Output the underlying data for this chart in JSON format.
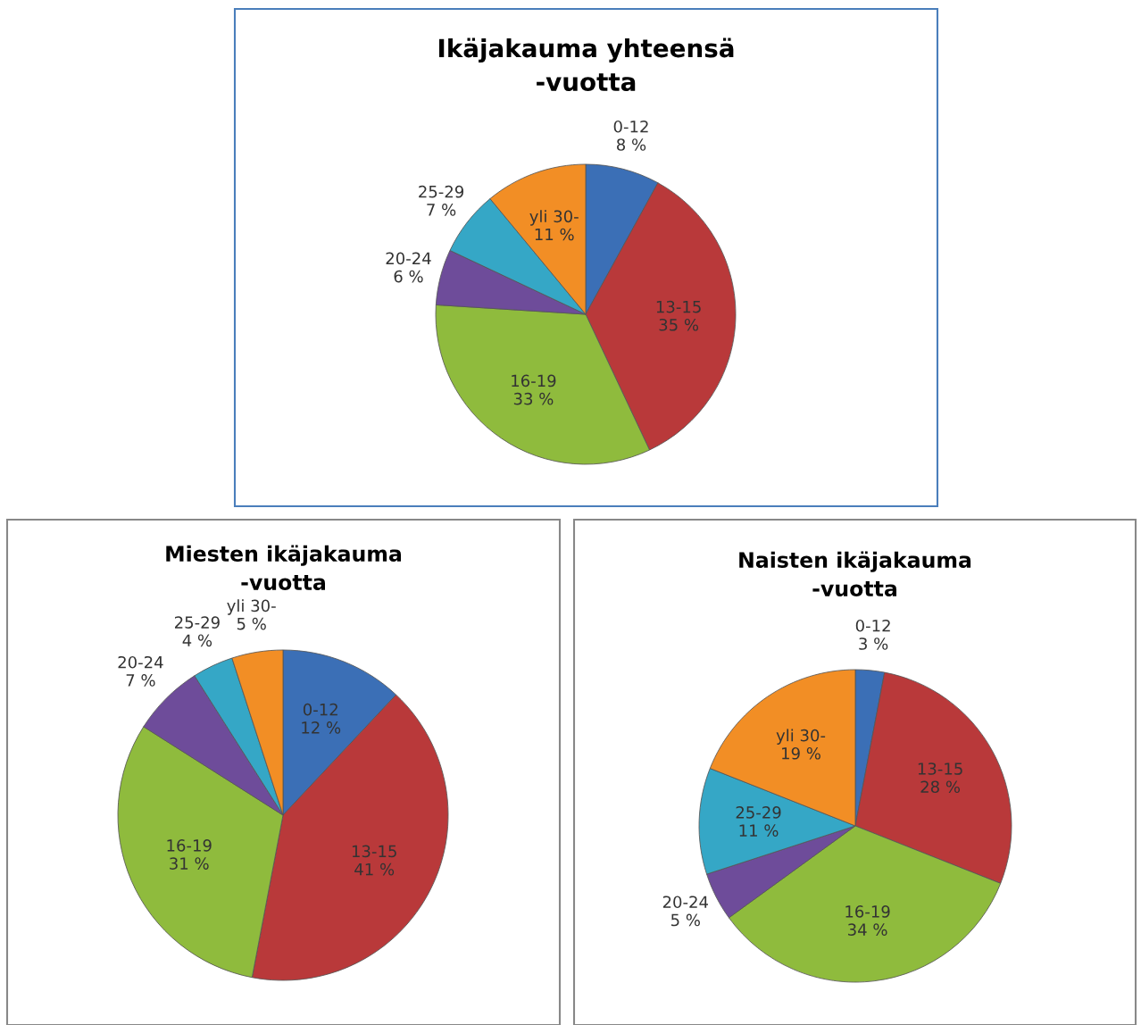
{
  "chart_data": [
    {
      "type": "pie",
      "title": "Ikäjakauma yhteensä\n-vuotta",
      "categories": [
        "0-12",
        "13-15",
        "16-19",
        "20-24",
        "25-29",
        "yli 30-"
      ],
      "values": [
        8,
        35,
        33,
        6,
        7,
        11
      ],
      "value_labels": [
        "8 %",
        "35 %",
        "33 %",
        "6 %",
        "7 %",
        "11 %"
      ],
      "colors": [
        "#3b6fb6",
        "#b9393a",
        "#8fbb3d",
        "#6e4c9a",
        "#35a7c6",
        "#f28e25"
      ]
    },
    {
      "type": "pie",
      "title": "Miesten ikäjakauma\n-vuotta",
      "categories": [
        "0-12",
        "13-15",
        "16-19",
        "20-24",
        "25-29",
        "yli 30-"
      ],
      "values": [
        12,
        41,
        31,
        7,
        4,
        5
      ],
      "value_labels": [
        "12 %",
        "41 %",
        "31 %",
        "7 %",
        "4 %",
        "5 %"
      ],
      "colors": [
        "#3b6fb6",
        "#b9393a",
        "#8fbb3d",
        "#6e4c9a",
        "#35a7c6",
        "#f28e25"
      ]
    },
    {
      "type": "pie",
      "title": "Naisten ikäjakauma\n-vuotta",
      "categories": [
        "0-12",
        "13-15",
        "16-19",
        "20-24",
        "25-29",
        "yli 30-"
      ],
      "values": [
        3,
        28,
        34,
        5,
        11,
        19
      ],
      "value_labels": [
        "3 %",
        "28 %",
        "34 %",
        "5 %",
        "11 %",
        "19 %"
      ],
      "colors": [
        "#3b6fb6",
        "#b9393a",
        "#8fbb3d",
        "#6e4c9a",
        "#35a7c6",
        "#f28e25"
      ]
    }
  ]
}
